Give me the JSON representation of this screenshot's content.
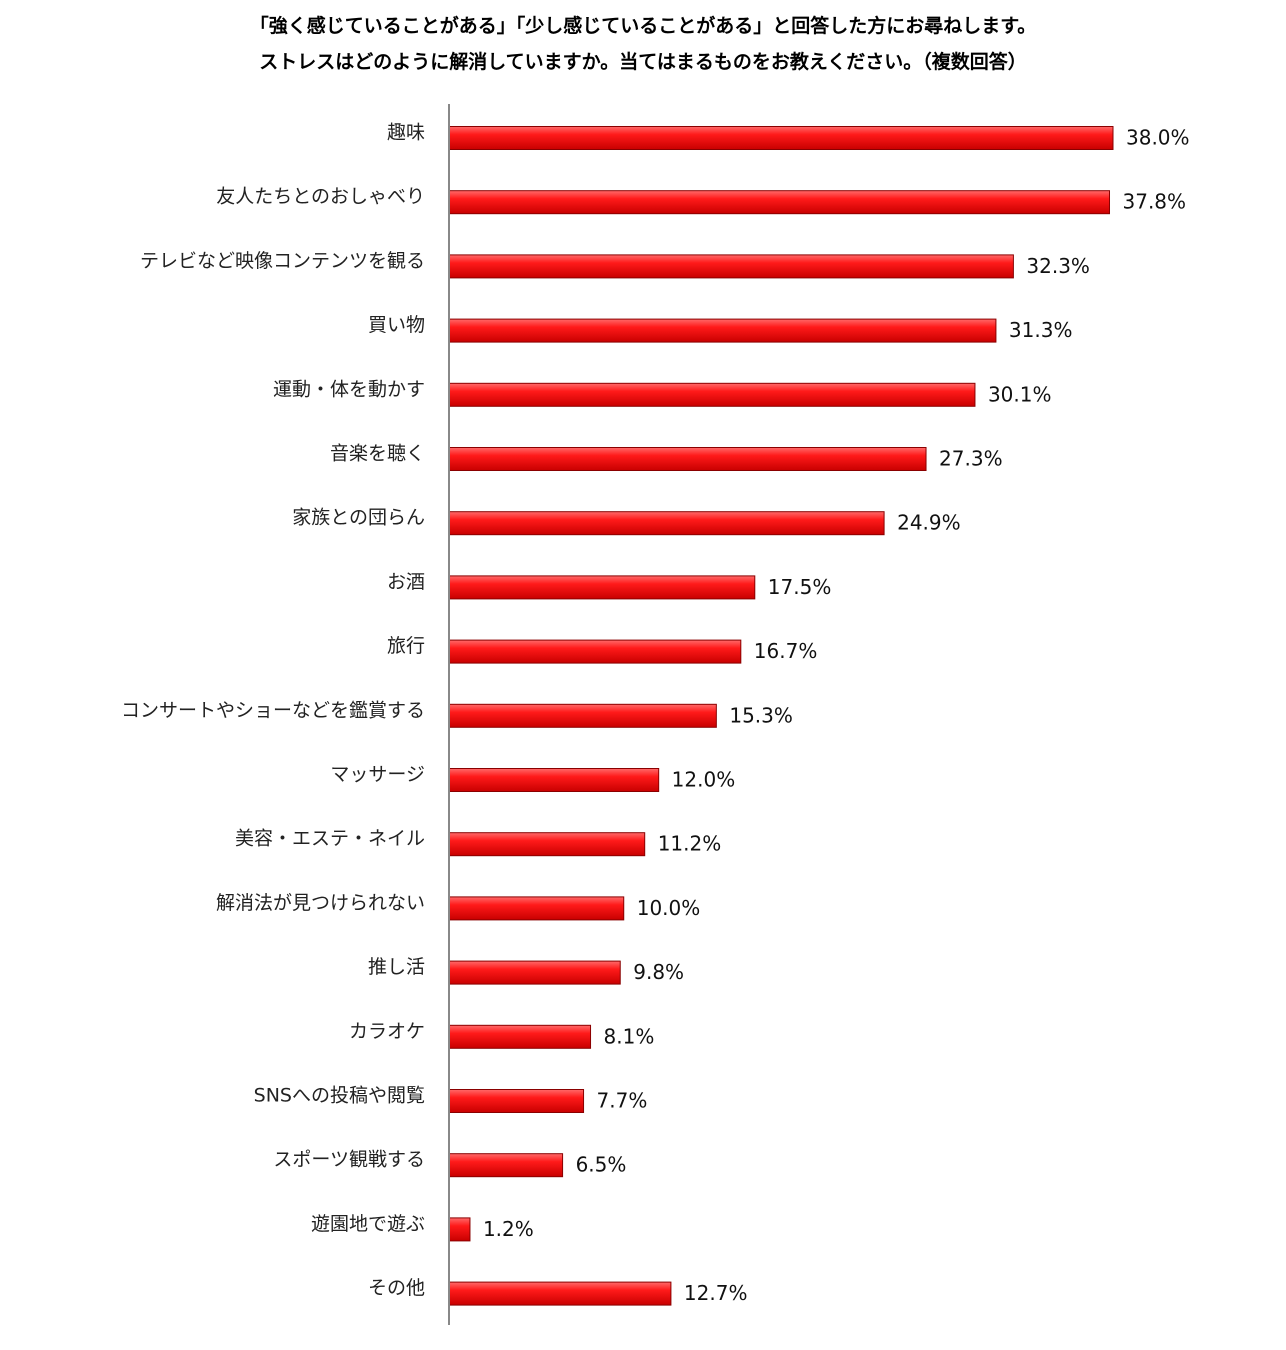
{
  "chart_data": {
    "type": "bar",
    "orientation": "horizontal",
    "title_lines": [
      "「強く感じていることがある」「少し感じていることがある」と回答した方にお尋ねします。",
      "ストレスはどのように解消していますか。当てはまるものをお教えください。（複数回答）"
    ],
    "categories": [
      "趣味",
      "友人たちとのおしゃべり",
      "テレビなど映像コンテンツを観る",
      "買い物",
      "運動・体を動かす",
      "音楽を聴く",
      "家族との団らん",
      "お酒",
      "旅行",
      "コンサートやショーなどを鑑賞する",
      "マッサージ",
      "美容・エステ・ネイル",
      "解消法が見つけられない",
      "推し活",
      "カラオケ",
      "SNSへの投稿や閲覧",
      "スポーツ観戦する",
      "遊園地で遊ぶ",
      "その他"
    ],
    "values": [
      38.0,
      37.8,
      32.3,
      31.3,
      30.1,
      27.3,
      24.9,
      17.5,
      16.7,
      15.3,
      12.0,
      11.2,
      10.0,
      9.8,
      8.1,
      7.7,
      6.5,
      1.2,
      12.7
    ],
    "value_labels": [
      "38.0%",
      "37.8%",
      "32.3%",
      "31.3%",
      "30.1%",
      "27.3%",
      "24.9%",
      "17.5%",
      "16.7%",
      "15.3%",
      "12.0%",
      "11.2%",
      "10.0%",
      "9.8%",
      "8.1%",
      "7.7%",
      "6.5%",
      "1.2%",
      "12.7%"
    ],
    "unit": "%",
    "bar_color": "#ee1111",
    "bar_edge_color": "#8a0000",
    "axis_color": "#888888",
    "grid": false,
    "legend": "none"
  }
}
